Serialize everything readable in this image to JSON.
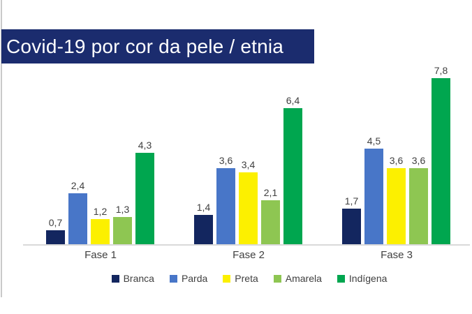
{
  "window": {
    "background": "#ffffff",
    "left_edge_color": "#c9c9c9"
  },
  "header": {
    "title": "Covid-19 por cor da pele / etnia",
    "bar_color": "#1b2c6e",
    "text_color": "#ffffff"
  },
  "chart_data": {
    "type": "bar",
    "title": "Covid-19 por cor da pele / etnia",
    "categories": [
      "Fase 1",
      "Fase 2",
      "Fase 3"
    ],
    "series": [
      {
        "name": "Branca",
        "color": "#13265f",
        "values": [
          0.7,
          1.4,
          1.7
        ]
      },
      {
        "name": "Parda",
        "color": "#4876c8",
        "values": [
          2.4,
          3.6,
          4.5
        ]
      },
      {
        "name": "Preta",
        "color": "#fcf000",
        "values": [
          1.2,
          3.4,
          3.6
        ]
      },
      {
        "name": "Amarela",
        "color": "#8ec652",
        "values": [
          1.3,
          2.1,
          3.6
        ]
      },
      {
        "name": "Indígena",
        "color": "#00a64f",
        "values": [
          4.3,
          6.4,
          7.8
        ]
      }
    ],
    "value_labels": [
      [
        "0,7",
        "1,4",
        "1,7"
      ],
      [
        "2,4",
        "3,6",
        "4,5"
      ],
      [
        "1,2",
        "3,4",
        "3,6"
      ],
      [
        "1,3",
        "2,1",
        "3,6"
      ],
      [
        "4,3",
        "6,4",
        "7,8"
      ]
    ],
    "decimal_separator": ",",
    "ylim": [
      0,
      8
    ],
    "grid": false,
    "axis_line_color": "#d9d9d9",
    "label_color": "#3f3f3f",
    "legend_position": "bottom"
  }
}
